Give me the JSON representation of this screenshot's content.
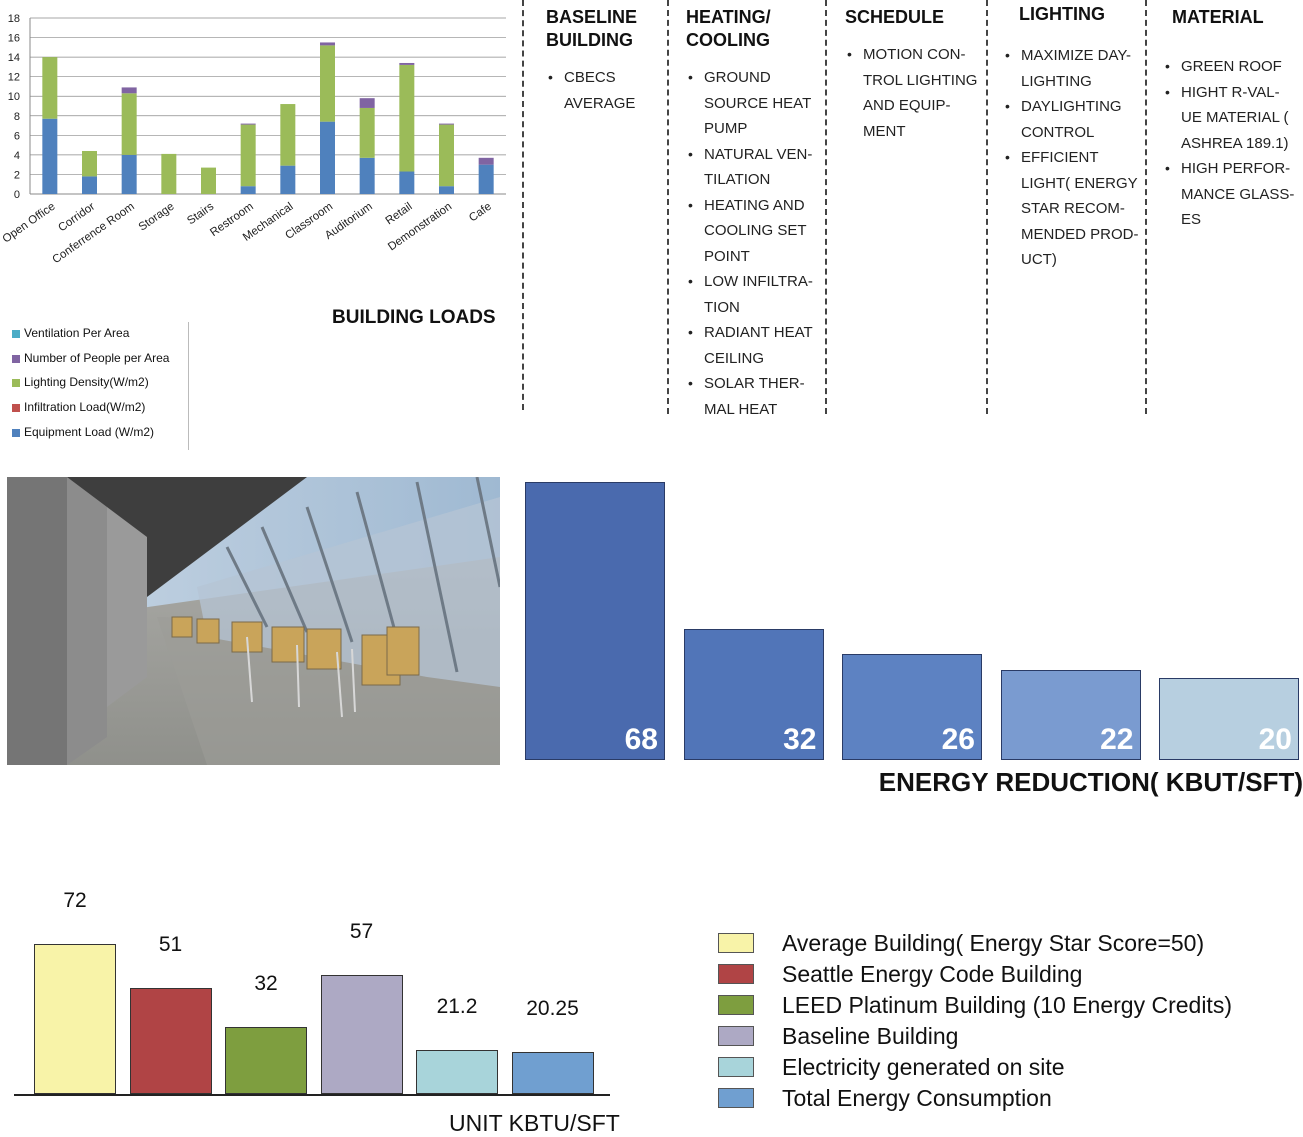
{
  "colors": {
    "ventilation": "#4bacc6",
    "people": "#8064a2",
    "lighting": "#9bbb59",
    "infiltration": "#c0504d",
    "equipment": "#4f81bd"
  },
  "chart_data": [
    {
      "type": "bar",
      "stacked": true,
      "title": "BUILDING LOADS",
      "categories": [
        "Open Office",
        "Corridor",
        "Conferrence Room",
        "Storage",
        "Stairs",
        "Restroom",
        "Mechanical",
        "Classroom",
        "Auditorium",
        "Retail",
        "Demonstration",
        "Cafe"
      ],
      "series": [
        {
          "name": "Equipment Load (W/m2)",
          "values": [
            7.7,
            1.8,
            4.0,
            0,
            0,
            0.8,
            2.9,
            7.4,
            3.7,
            2.3,
            0.8,
            3.0
          ]
        },
        {
          "name": "Infiltration Load(W/m2)",
          "values": [
            0,
            0,
            0,
            0,
            0,
            0,
            0,
            0,
            0,
            0,
            0,
            0
          ]
        },
        {
          "name": "Lighting Density(W/m2)",
          "values": [
            6.3,
            2.6,
            6.3,
            4.1,
            2.7,
            6.3,
            6.3,
            7.8,
            5.1,
            10.9,
            6.3,
            0
          ]
        },
        {
          "name": "Number of People per Area",
          "values": [
            0,
            0,
            0.6,
            0,
            0,
            0.1,
            0,
            0.3,
            1.0,
            0.2,
            0.1,
            0.7
          ]
        },
        {
          "name": "Ventilation Per Area",
          "values": [
            0,
            0,
            0,
            0,
            0,
            0,
            0,
            0,
            0,
            0,
            0,
            0
          ]
        }
      ],
      "ylim": [
        0,
        18
      ],
      "yticks": [
        "0",
        "2",
        "4",
        "6",
        "8",
        "10",
        "12",
        "14",
        "16",
        "18"
      ],
      "grid": true,
      "legend_position": "bottom-left",
      "legend_order": [
        "Ventilation Per Area",
        "Number of People per Area",
        "Lighting Density(W/m2)",
        "Infiltration Load(W/m2)",
        "Equipment Load (W/m2)"
      ]
    },
    {
      "type": "bar",
      "title": "ENERGY REDUCTION( KBUT/SFT)",
      "categories": [
        "BASELINE BUILDING",
        "HEATING/ COOLING",
        "SCHEDULE",
        "LIGHTING",
        "MATERIAL"
      ],
      "values": [
        68,
        32,
        26,
        22,
        20
      ],
      "colors": [
        "#4a6aae",
        "#5175b8",
        "#5d82c2",
        "#7a9bd0",
        "#b7cfe0"
      ],
      "ylim": [
        0,
        68
      ]
    },
    {
      "type": "bar",
      "xlabel": "UNIT KBTU/SFT",
      "categories": [
        "Average Building( Energy Star Score=50)",
        "Seattle Energy Code Building",
        "LEED Platinum Building (10 Energy Credits)",
        "Baseline Building",
        "Electricity generated on site",
        "Total Energy Consumption"
      ],
      "values": [
        72,
        51,
        32,
        57,
        21.2,
        20.25
      ],
      "value_labels": [
        "72",
        "51",
        "32",
        "57",
        "21.2",
        "20.25"
      ],
      "colors": [
        "#f8f3a8",
        "#b04445",
        "#7e9e3f",
        "#ada9c4",
        "#a8d4da",
        "#709fd0"
      ],
      "ylim": [
        0,
        72
      ],
      "legend_position": "right"
    }
  ],
  "strategies": [
    {
      "title": "BASELINE\nBUILDING",
      "items": [
        "CBECS\nAVERAGE"
      ]
    },
    {
      "title": "HEATING/\nCOOLING",
      "items": [
        "GROUND\nSOURCE HEAT\nPUMP",
        "NATURAL VEN-\nTILATION",
        "HEATING AND\nCOOLING SET\nPOINT",
        "LOW INFILTRA-\nTION",
        "RADIANT HEAT\nCEILING",
        "SOLAR THER-\nMAL HEAT"
      ]
    },
    {
      "title": "SCHEDULE",
      "items": [
        "MOTION CON-\nTROL LIGHTING\nAND EQUIP-\nMENT"
      ]
    },
    {
      "title": "LIGHTING",
      "items": [
        "MAXIMIZE DAY-\nLIGHTING",
        "DAYLIGHTING\nCONTROL",
        "EFFICIENT\nLIGHT( ENERGY\nSTAR RECOM-\nMENDED PROD-\nUCT)"
      ]
    },
    {
      "title": "MATERIAL",
      "items": [
        "GREEN ROOF",
        "HIGHT R-VAL-\nUE MATERIAL (\nASHREA 189.1)",
        "HIGH PERFOR-\nMANCE GLASS-\nES"
      ]
    }
  ]
}
